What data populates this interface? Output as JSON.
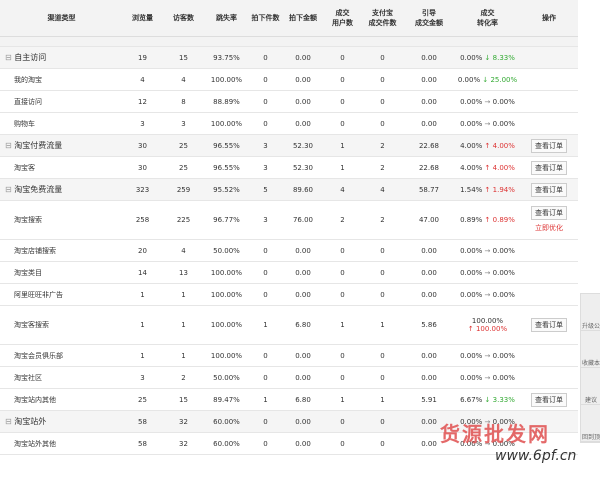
{
  "table": {
    "header": [
      "渠道类型",
      "浏览量",
      "访客数",
      "跳失率",
      "拍下件数",
      "拍下金额",
      "成交\n用户数",
      "支付宝\n成交件数",
      "引导\n成交金额",
      "成交\n转化率",
      "操作"
    ],
    "rows": [
      {
        "name": "自主访问",
        "group": true,
        "cells": [
          "19",
          "15",
          "93.75%",
          "0",
          "0.00",
          "0",
          "0",
          "0.00"
        ],
        "rate": "0.00%",
        "change": "8.33%",
        "trend": "down",
        "actions": []
      },
      {
        "name": "我的淘宝",
        "cells": [
          "4",
          "4",
          "100.00%",
          "0",
          "0.00",
          "0",
          "0",
          "0.00"
        ],
        "rate": "0.00%",
        "change": "25.00%",
        "trend": "down",
        "actions": []
      },
      {
        "name": "直接访问",
        "cells": [
          "12",
          "8",
          "88.89%",
          "0",
          "0.00",
          "0",
          "0",
          "0.00"
        ],
        "rate": "0.00%",
        "change": "0.00%",
        "trend": "flat",
        "actions": []
      },
      {
        "name": "购物车",
        "cells": [
          "3",
          "3",
          "100.00%",
          "0",
          "0.00",
          "0",
          "0",
          "0.00"
        ],
        "rate": "0.00%",
        "change": "0.00%",
        "trend": "flat",
        "actions": []
      },
      {
        "name": "淘宝付费流量",
        "group": true,
        "cells": [
          "30",
          "25",
          "96.55%",
          "3",
          "52.30",
          "1",
          "2",
          "22.68"
        ],
        "rate": "4.00%",
        "change": "4.00%",
        "trend": "up",
        "actions": [
          "查看订单"
        ]
      },
      {
        "name": "淘宝客",
        "cells": [
          "30",
          "25",
          "96.55%",
          "3",
          "52.30",
          "1",
          "2",
          "22.68"
        ],
        "rate": "4.00%",
        "change": "4.00%",
        "trend": "up",
        "actions": [
          "查看订单"
        ]
      },
      {
        "name": "淘宝免费流量",
        "group": true,
        "cells": [
          "323",
          "259",
          "95.52%",
          "5",
          "89.60",
          "4",
          "4",
          "58.77"
        ],
        "rate": "1.54%",
        "change": "1.94%",
        "trend": "up",
        "actions": [
          "查看订单"
        ]
      },
      {
        "name": "淘宝搜索",
        "tall": true,
        "cells": [
          "258",
          "225",
          "96.77%",
          "3",
          "76.00",
          "2",
          "2",
          "47.00"
        ],
        "rate": "0.89%",
        "change": "0.89%",
        "trend": "up",
        "actions": [
          "查看订单",
          "立即优化"
        ]
      },
      {
        "name": "淘宝店铺搜索",
        "cells": [
          "20",
          "4",
          "50.00%",
          "0",
          "0.00",
          "0",
          "0",
          "0.00"
        ],
        "rate": "0.00%",
        "change": "0.00%",
        "trend": "flat",
        "actions": []
      },
      {
        "name": "淘宝类目",
        "cells": [
          "14",
          "13",
          "100.00%",
          "0",
          "0.00",
          "0",
          "0",
          "0.00"
        ],
        "rate": "0.00%",
        "change": "0.00%",
        "trend": "flat",
        "actions": []
      },
      {
        "name": "阿里旺旺非广告",
        "cells": [
          "1",
          "1",
          "100.00%",
          "0",
          "0.00",
          "0",
          "0",
          "0.00"
        ],
        "rate": "0.00%",
        "change": "0.00%",
        "trend": "flat",
        "actions": []
      },
      {
        "name": "淘宝客搜索",
        "tall": true,
        "cells": [
          "1",
          "1",
          "100.00%",
          "1",
          "6.80",
          "1",
          "1",
          "5.86"
        ],
        "rate": "100.00%",
        "change": "100.00%",
        "trend": "up",
        "actions": [
          "查看订单"
        ]
      },
      {
        "name": "淘宝会员俱乐部",
        "cells": [
          "1",
          "1",
          "100.00%",
          "0",
          "0.00",
          "0",
          "0",
          "0.00"
        ],
        "rate": "0.00%",
        "change": "0.00%",
        "trend": "flat",
        "actions": []
      },
      {
        "name": "淘宝社区",
        "cells": [
          "3",
          "2",
          "50.00%",
          "0",
          "0.00",
          "0",
          "0",
          "0.00"
        ],
        "rate": "0.00%",
        "change": "0.00%",
        "trend": "flat",
        "actions": []
      },
      {
        "name": "淘宝站内其他",
        "cells": [
          "25",
          "15",
          "89.47%",
          "1",
          "6.80",
          "1",
          "1",
          "5.91"
        ],
        "rate": "6.67%",
        "change": "3.33%",
        "trend": "down",
        "actions": [
          "查看订单"
        ]
      },
      {
        "name": "淘宝站外",
        "group": true,
        "cells": [
          "58",
          "32",
          "60.00%",
          "0",
          "0.00",
          "0",
          "0",
          "0.00"
        ],
        "rate": "0.00%",
        "change": "0.00%",
        "trend": "flat",
        "actions": []
      },
      {
        "name": "淘宝站外其他",
        "cells": [
          "58",
          "32",
          "60.00%",
          "0",
          "0.00",
          "0",
          "0",
          "0.00"
        ],
        "rate": "0.00%",
        "change": "0.00%",
        "trend": "flat",
        "actions": []
      }
    ]
  },
  "sidebar": [
    "升级公",
    "收藏本",
    "建议",
    "回到顶"
  ],
  "watermark": {
    "title": "货源批发网",
    "url": "www.6pf.cn"
  }
}
